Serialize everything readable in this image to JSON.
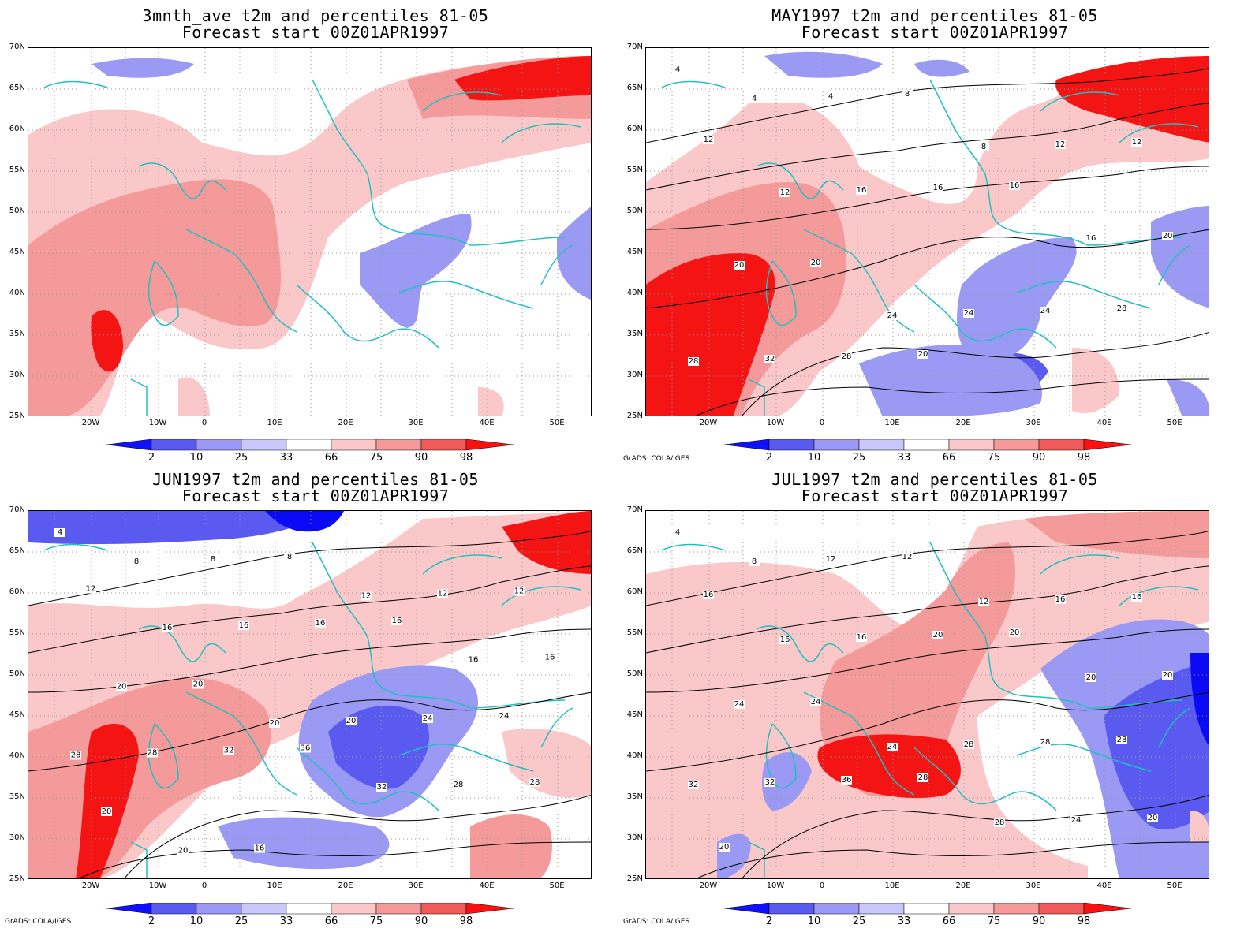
{
  "panels": [
    {
      "id": "p1",
      "title_line1": "3mnth_ave t2m and percentiles 81-05",
      "title_line2": "Forecast start 00Z01APR1997",
      "credit": "",
      "contour_labels": []
    },
    {
      "id": "p2",
      "title_line1": "MAY1997 t2m and percentiles 81-05",
      "title_line2": "Forecast start 00Z01APR1997",
      "credit": "GrADS: COLA/IGES",
      "contour_labels": [
        "4",
        "4",
        "4",
        "8",
        "8",
        "12",
        "12",
        "12",
        "12",
        "16",
        "16",
        "16",
        "16",
        "20",
        "20",
        "20",
        "24",
        "24",
        "24",
        "28",
        "28",
        "32",
        "28",
        "20"
      ]
    },
    {
      "id": "p3",
      "title_line1": "JUN1997 t2m and percentiles 81-05",
      "title_line2": "Forecast start 00Z01APR1997",
      "credit": "GrADS: COLA/IGES",
      "contour_labels": [
        "4",
        "8",
        "8",
        "8",
        "12",
        "12",
        "12",
        "12",
        "16",
        "16",
        "16",
        "16",
        "16",
        "16",
        "20",
        "20",
        "20",
        "20",
        "24",
        "24",
        "28",
        "28",
        "32",
        "36",
        "32",
        "28",
        "28",
        "20",
        "20",
        "16"
      ]
    },
    {
      "id": "p4",
      "title_line1": "JUL1997 t2m and percentiles 81-05",
      "title_line2": "Forecast start 00Z01APR1997",
      "credit": "GrADS: COLA/IGES",
      "contour_labels": [
        "4",
        "8",
        "12",
        "12",
        "12",
        "16",
        "16",
        "16",
        "16",
        "16",
        "20",
        "20",
        "20",
        "20",
        "24",
        "24",
        "24",
        "28",
        "28",
        "28",
        "32",
        "32",
        "36",
        "28",
        "28",
        "24",
        "20",
        "20"
      ]
    }
  ],
  "lat_labels": [
    "70N",
    "65N",
    "60N",
    "55N",
    "50N",
    "45N",
    "40N",
    "35N",
    "30N",
    "25N"
  ],
  "lon_labels": [
    "20W",
    "10W",
    "0",
    "10E",
    "20E",
    "30E",
    "40E",
    "50E"
  ],
  "colorbar": {
    "labels": [
      "2",
      "10",
      "25",
      "33",
      "66",
      "75",
      "90",
      "98"
    ],
    "colors": [
      "#0a0af5",
      "#5a5af0",
      "#9a9af5",
      "#c8c8fa",
      "#ffffff",
      "#fac8c8",
      "#f59a9a",
      "#f05a5a",
      "#f51414"
    ],
    "low_color": "#1010ff",
    "high_color": "#ff1010"
  },
  "coast_color": "#20c0c0",
  "contour_color": "#000000"
}
